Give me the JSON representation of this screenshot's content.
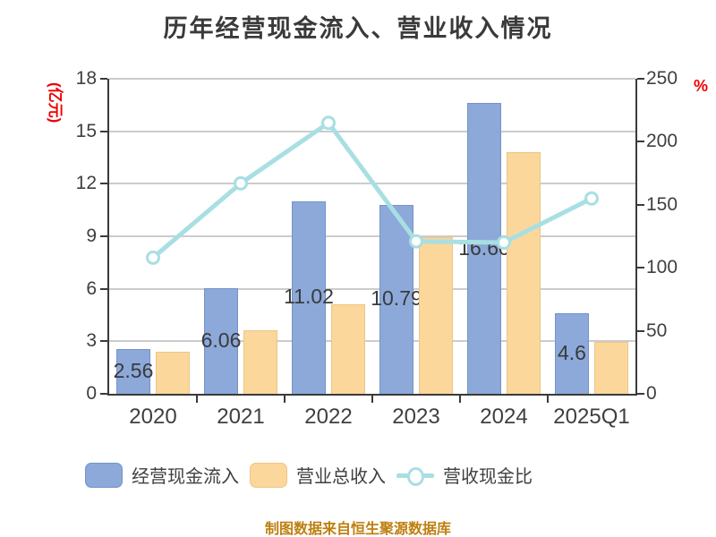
{
  "title": "历年经营现金流入、营业收入情况",
  "footer": "制图数据来自恒生聚源数据库",
  "colors": {
    "bar_cash_inflow": "#8CA9DA",
    "bar_revenue": "#FBD79B",
    "ratio_line": "#A8DFE3",
    "axis_unit_red": "#ee0000",
    "footer_gold": "#be7f10",
    "grid": "#cccccc",
    "axis": "#3a3a3a"
  },
  "left_axis": {
    "unit": "(亿元)",
    "ticks": [
      0,
      3,
      6,
      9,
      12,
      15,
      18
    ],
    "max": 18
  },
  "right_axis": {
    "unit": "%",
    "ticks": [
      0,
      50,
      100,
      150,
      200,
      250
    ],
    "max": 250
  },
  "chart_data": {
    "type": "bar",
    "categories": [
      "2020",
      "2021",
      "2022",
      "2023",
      "2024",
      "2025Q1"
    ],
    "series": [
      {
        "name": "经营现金流入",
        "kind": "bar",
        "axis": "left",
        "color": "#8CA9DA",
        "values": [
          2.56,
          6.06,
          11.02,
          10.79,
          16.6,
          4.6
        ],
        "labels": [
          "2.56",
          "6.06",
          "11.02",
          "10.79",
          "16.60",
          "4.6"
        ]
      },
      {
        "name": "营业总收入",
        "kind": "bar",
        "axis": "left",
        "color": "#FBD79B",
        "values": [
          2.4,
          3.63,
          5.12,
          8.94,
          13.8,
          2.96
        ]
      },
      {
        "name": "营收现金比",
        "kind": "line",
        "axis": "right",
        "color": "#A8DFE3",
        "values": [
          108,
          167,
          215,
          121,
          120,
          155
        ]
      }
    ],
    "title": "历年经营现金流入、营业收入情况",
    "xlabel": "",
    "ylabel_left": "(亿元)",
    "ylabel_right": "%",
    "ylim_left": [
      0,
      18
    ],
    "ylim_right": [
      0,
      250
    ],
    "grid": true,
    "legend_position": "bottom"
  },
  "legend": {
    "item1": "经营现金流入",
    "item2": "营业总收入",
    "item3": "营收现金比"
  }
}
